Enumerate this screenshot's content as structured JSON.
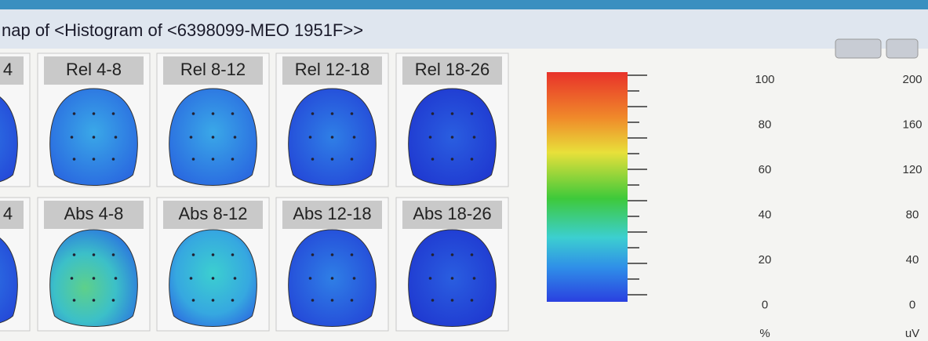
{
  "window": {
    "title": "nap of <Histogram of <6398099-MEO 1951F>>"
  },
  "maps": {
    "rows": [
      [
        "4",
        "Rel 4-8",
        "Rel 8-12",
        "Rel 12-18",
        "Rel 18-26"
      ],
      [
        "4",
        "Abs 4-8",
        "Abs 8-12",
        "Abs 12-18",
        "Abs 18-26"
      ]
    ]
  },
  "scale": {
    "percent": {
      "labels": [
        100,
        80,
        60,
        40,
        20,
        0
      ],
      "unit": "%"
    },
    "uv": {
      "labels": [
        200,
        160,
        120,
        80,
        40,
        0
      ],
      "unit": "uV"
    }
  }
}
